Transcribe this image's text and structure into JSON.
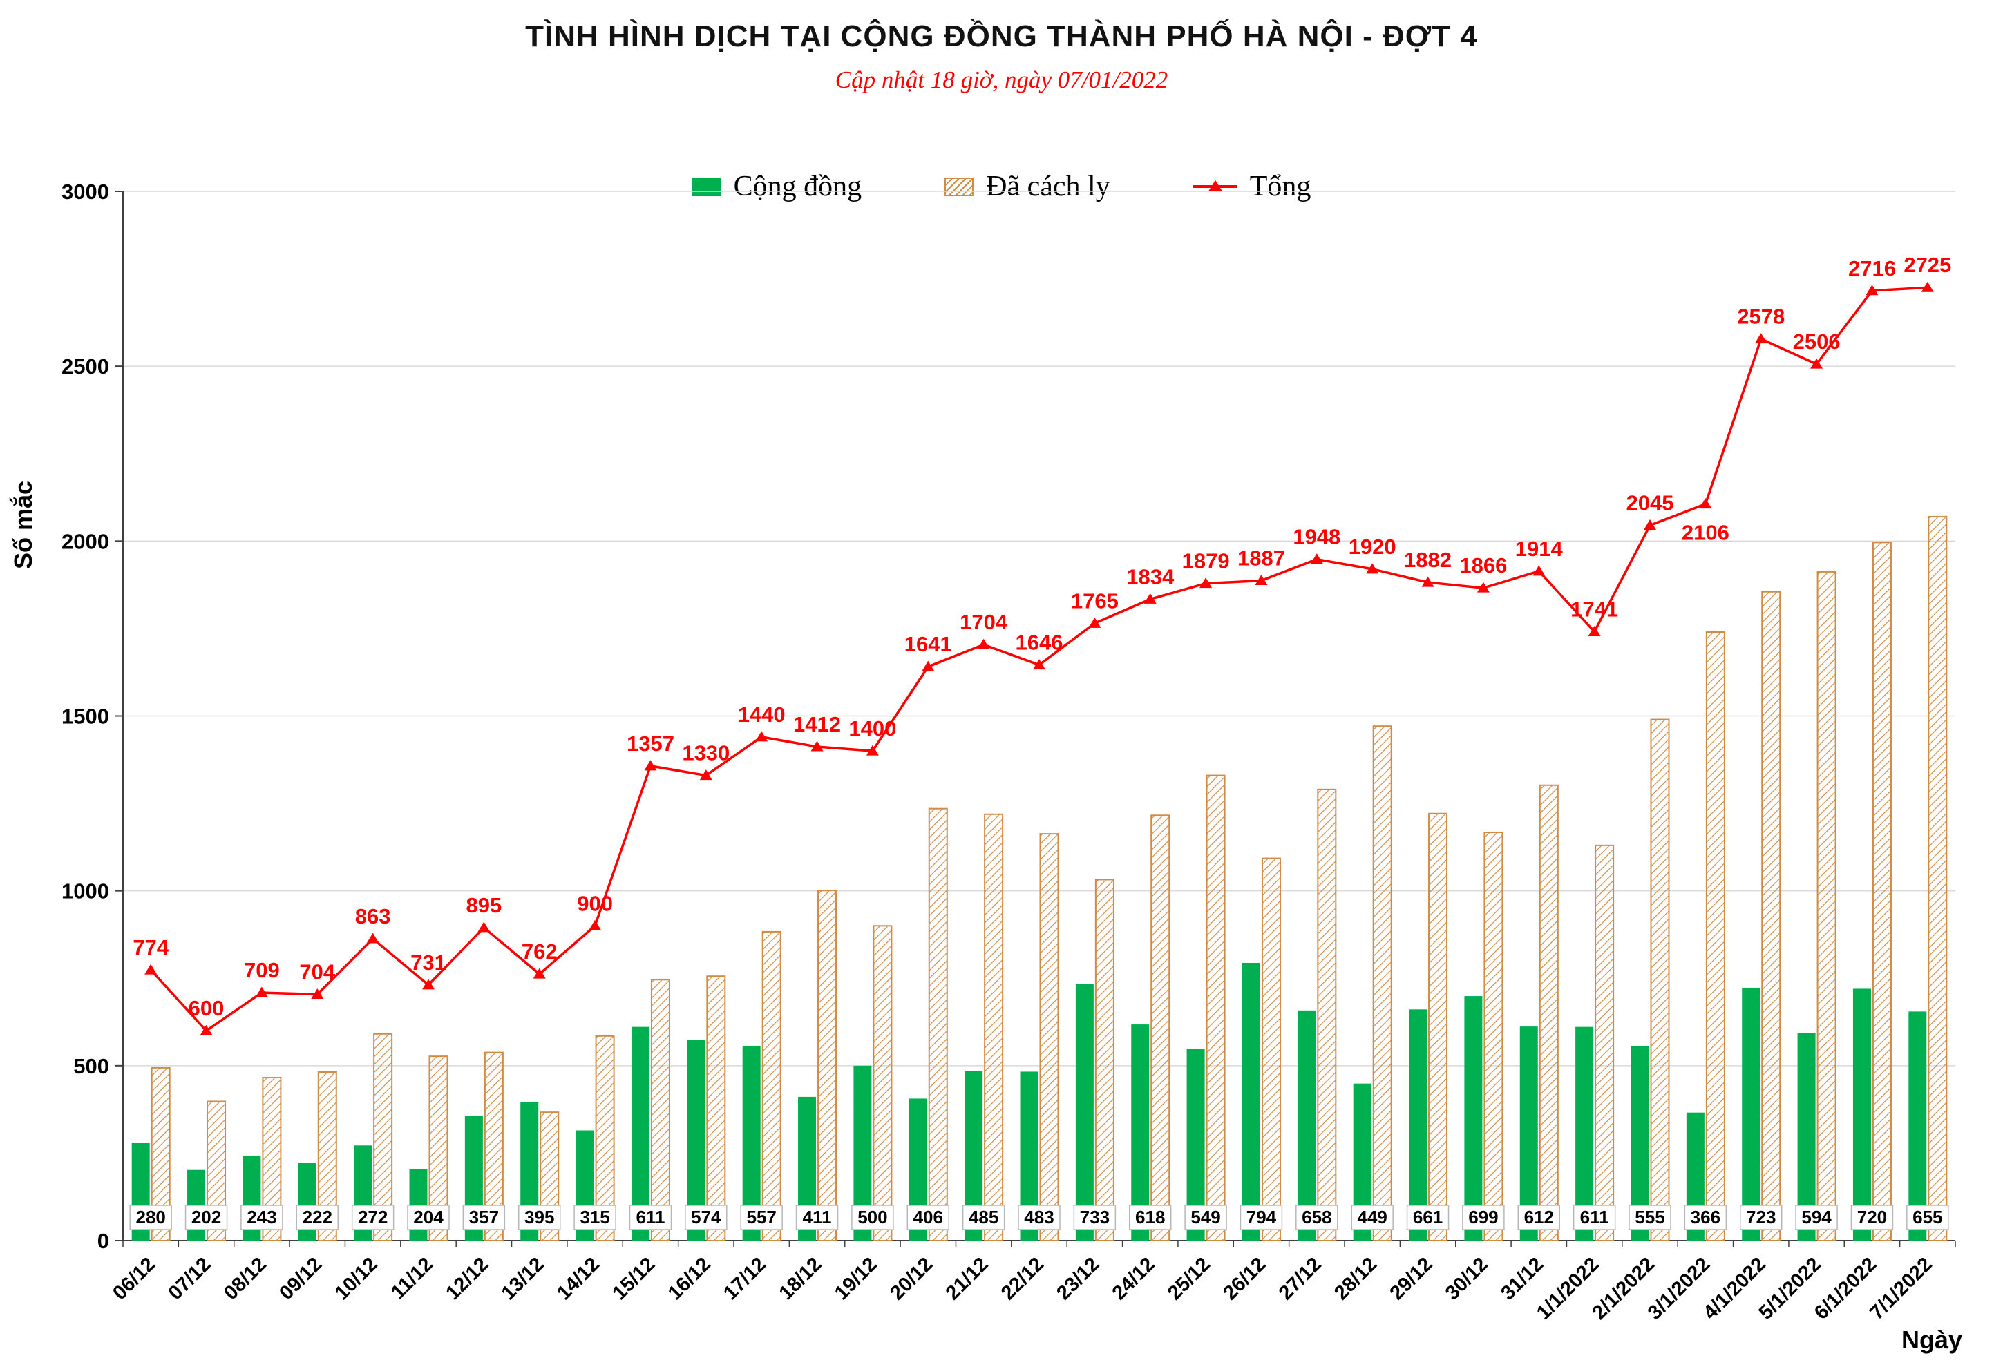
{
  "title": "TÌNH HÌNH DỊCH TẠI CỘNG ĐỒNG THÀNH PHỐ HÀ NỘI - ĐỢT 4",
  "subtitle": "Cập nhật 18 giờ, ngày 07/01/2022",
  "chart_data": {
    "type": "combo-bar-line",
    "title": "TÌNH HÌNH DỊCH TẠI CỘNG ĐỒNG THÀNH PHỐ HÀ NỘI - ĐỢT 4",
    "subtitle": "Cập nhật 18 giờ, ngày 07/01/2022",
    "xlabel": "Ngày",
    "ylabel": "Số mắc",
    "ylim": [
      0,
      3000
    ],
    "yticks": [
      0,
      500,
      1000,
      1500,
      2000,
      2500,
      3000
    ],
    "grid": true,
    "legend_position": "top",
    "categories": [
      "06/12",
      "07/12",
      "08/12",
      "09/12",
      "10/12",
      "11/12",
      "12/12",
      "13/12",
      "14/12",
      "15/12",
      "16/12",
      "17/12",
      "18/12",
      "19/12",
      "20/12",
      "21/12",
      "22/12",
      "23/12",
      "24/12",
      "25/12",
      "26/12",
      "27/12",
      "28/12",
      "29/12",
      "30/12",
      "31/12",
      "1/1/2022",
      "2/1/2022",
      "3/1/2022",
      "4/1/2022",
      "5/1/2022",
      "6/1/2022",
      "7/1/2022"
    ],
    "series": [
      {
        "name": "Cộng đồng",
        "type": "bar",
        "style": "solid",
        "color": "#00B050",
        "values": [
          280,
          202,
          243,
          222,
          272,
          204,
          357,
          395,
          315,
          611,
          574,
          557,
          411,
          500,
          406,
          485,
          483,
          733,
          618,
          549,
          794,
          658,
          449,
          661,
          699,
          612,
          611,
          555,
          366,
          723,
          594,
          720,
          655
        ],
        "value_labels": "boxed-at-baseline"
      },
      {
        "name": "Đã cách ly",
        "type": "bar",
        "style": "hatched",
        "color": "#D08B45",
        "values": [
          494,
          398,
          466,
          482,
          591,
          527,
          538,
          367,
          585,
          746,
          756,
          883,
          1001,
          900,
          1235,
          1219,
          1163,
          1032,
          1216,
          1330,
          1093,
          1290,
          1471,
          1221,
          1167,
          1302,
          1130,
          1490,
          1740,
          1855,
          1912,
          1996,
          2070
        ]
      },
      {
        "name": "Tổng",
        "type": "line",
        "color": "#FF0000",
        "marker": "triangle",
        "values": [
          774,
          600,
          709,
          704,
          863,
          731,
          895,
          762,
          900,
          1357,
          1330,
          1440,
          1412,
          1400,
          1641,
          1704,
          1646,
          1765,
          1834,
          1879,
          1887,
          1948,
          1920,
          1882,
          1866,
          1914,
          1741,
          2045,
          2106,
          2578,
          2506,
          2716,
          2725
        ],
        "label_below_indices": [
          28
        ]
      }
    ]
  }
}
